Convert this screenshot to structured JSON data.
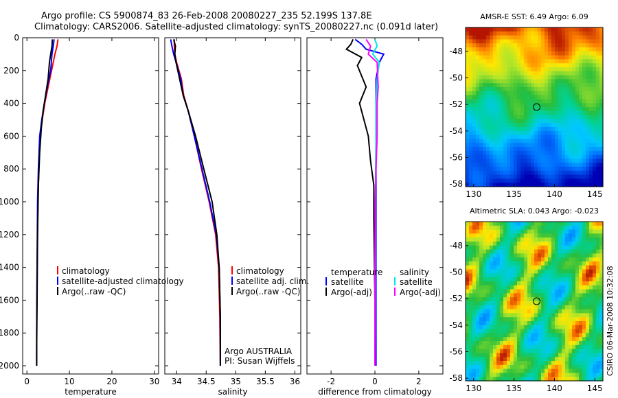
{
  "header": {
    "title_line1": "Argo profile: CS 5900874_83 26-Feb-2008 20080227_235 52.199S 137.8E",
    "title_line2": "Climatology: CARS2006. Satellite-adjusted climatology: synTS_20080227.nc (0.091d later)"
  },
  "side_credit": "CSIRO 06-Mar-2008 10:32:08",
  "colors": {
    "clim": "#ff0000",
    "sat": "#0000ff",
    "argo": "#000000",
    "salsat": "#00e5e5",
    "salargo": "#ff00ff"
  },
  "chart_data": [
    {
      "id": "temperature",
      "type": "line",
      "xlabel": "temperature",
      "ylabel": "",
      "xlim": [
        -1,
        31
      ],
      "ylim": [
        2050,
        0
      ],
      "xticks": [
        0,
        10,
        20,
        30
      ],
      "yticks": [
        0,
        200,
        400,
        600,
        800,
        1000,
        1200,
        1400,
        1600,
        1800,
        2000
      ],
      "legend": {
        "position": "bottom-center",
        "entries": [
          "climatology",
          "satellite-adjusted climatology",
          "Argo(..raw -QC)"
        ]
      },
      "series": [
        {
          "name": "climatology",
          "color": "clim",
          "x": [
            7.3,
            7.1,
            6.6,
            5.8,
            5.0,
            4.2,
            3.6,
            3.1,
            2.8,
            2.6,
            2.4,
            2.3,
            2.3
          ],
          "y": [
            10,
            50,
            100,
            200,
            300,
            400,
            500,
            600,
            800,
            1000,
            1400,
            1800,
            2000
          ]
        },
        {
          "name": "satellite-adjusted climatology",
          "color": "sat",
          "x": [
            6.4,
            6.2,
            5.9,
            5.6,
            4.8,
            4.1,
            3.5,
            3.0,
            2.7,
            2.5,
            2.4,
            2.3,
            2.3
          ],
          "y": [
            10,
            50,
            100,
            200,
            300,
            400,
            500,
            600,
            800,
            1000,
            1400,
            1800,
            2000
          ]
        },
        {
          "name": "Argo(..raw -QC)",
          "color": "argo",
          "x": [
            6.0,
            5.9,
            5.6,
            5.3,
            5.0,
            4.4,
            3.8,
            3.4,
            3.0,
            2.7,
            2.5,
            2.4,
            2.3,
            2.3
          ],
          "y": [
            10,
            50,
            100,
            150,
            250,
            350,
            450,
            550,
            700,
            900,
            1200,
            1600,
            1900,
            2000
          ]
        }
      ]
    },
    {
      "id": "salinity",
      "type": "line",
      "xlabel": "salinity",
      "ylabel": "",
      "xlim": [
        33.8,
        36.1
      ],
      "ylim": [
        2050,
        0
      ],
      "xticks": [
        34,
        34.5,
        35,
        35.5,
        36
      ],
      "yticks": [
        0,
        200,
        400,
        600,
        800,
        1000,
        1200,
        1400,
        1600,
        1800,
        2000
      ],
      "legend": {
        "position": "bottom-center",
        "entries": [
          "climatology",
          "satellite adj. clim.",
          "Argo(..raw -QC)"
        ]
      },
      "annotation": [
        "Argo AUSTRALIA",
        "PI: Susan Wijffels"
      ],
      "series": [
        {
          "name": "climatology",
          "color": "clim",
          "x": [
            33.96,
            33.96,
            33.97,
            34.0,
            34.08,
            34.12,
            34.2,
            34.3,
            34.42,
            34.55,
            34.66,
            34.71,
            34.73,
            34.74
          ],
          "y": [
            10,
            50,
            100,
            150,
            250,
            350,
            450,
            600,
            800,
            1000,
            1200,
            1400,
            1700,
            2000
          ]
        },
        {
          "name": "satellite adj. clim.",
          "color": "sat",
          "x": [
            33.9,
            33.92,
            33.95,
            33.99,
            34.07,
            34.11,
            34.2,
            34.3,
            34.43,
            34.56,
            34.67,
            34.72,
            34.74,
            34.74
          ],
          "y": [
            10,
            50,
            100,
            150,
            250,
            350,
            450,
            600,
            800,
            1000,
            1200,
            1400,
            1700,
            2000
          ]
        },
        {
          "name": "Argo(..raw -QC)",
          "color": "argo",
          "x": [
            33.95,
            33.98,
            33.97,
            33.99,
            34.05,
            34.11,
            34.2,
            34.32,
            34.46,
            34.6,
            34.68,
            34.72,
            34.74,
            34.74
          ],
          "y": [
            10,
            50,
            100,
            150,
            250,
            350,
            450,
            600,
            800,
            1000,
            1200,
            1400,
            1700,
            2000
          ]
        }
      ]
    },
    {
      "id": "difference",
      "type": "line",
      "xlabel": "difference from climatology",
      "ylabel": "",
      "xlim": [
        -3.1,
        3.1
      ],
      "ylim": [
        2050,
        0
      ],
      "xticks": [
        -2,
        0,
        2
      ],
      "yticks": [
        0,
        200,
        400,
        600,
        800,
        1000,
        1200,
        1400,
        1600,
        1800,
        2000
      ],
      "legend": {
        "position": "bottom",
        "groups": [
          {
            "title": "temperature",
            "entries": [
              "satellite",
              "Argo(-adj)"
            ]
          },
          {
            "title": "salinity",
            "entries": [
              "satellite",
              "Argo(-adj)"
            ]
          }
        ]
      },
      "series": [
        {
          "name": "temperature satellite",
          "color": "sat",
          "x": [
            -0.9,
            -0.6,
            -0.4,
            0.4,
            0.2,
            0.05,
            0.05,
            0.05,
            0.05,
            0.05,
            0.05,
            0.05,
            0.05
          ],
          "y": [
            10,
            40,
            70,
            100,
            150,
            250,
            400,
            600,
            800,
            1000,
            1400,
            1800,
            2000
          ]
        },
        {
          "name": "temperature Argo(-adj)",
          "color": "argo",
          "x": [
            -1.0,
            -1.1,
            -1.3,
            -0.6,
            -0.8,
            -0.4,
            -0.7,
            -0.3,
            -0.2,
            -0.05,
            -0.05,
            0.0,
            0.0
          ],
          "y": [
            10,
            40,
            70,
            120,
            170,
            300,
            400,
            600,
            750,
            900,
            1100,
            1600,
            2000
          ]
        },
        {
          "name": "salinity satellite",
          "color": "salsat",
          "x": [
            0.0,
            0.1,
            -0.1,
            0.2,
            0.1,
            0.05,
            0.05,
            0.03,
            0.02,
            0.02,
            0.01,
            0.0
          ],
          "y": [
            10,
            50,
            100,
            150,
            250,
            400,
            600,
            800,
            1000,
            1400,
            1800,
            2000
          ]
        },
        {
          "name": "salinity Argo(-adj)",
          "color": "salargo",
          "x": [
            -0.4,
            -0.2,
            -0.3,
            0.1,
            0.15,
            0.1,
            0.1,
            0.05,
            0.02,
            0.0,
            0.0
          ],
          "y": [
            10,
            50,
            100,
            150,
            300,
            400,
            600,
            800,
            1000,
            1400,
            2000
          ]
        }
      ]
    },
    {
      "id": "sst_map",
      "type": "heatmap",
      "title": "AMSR-E SST: 6.49 Argo: 6.09",
      "xlim": [
        129,
        146
      ],
      "ylim": [
        -58.2,
        -46.2
      ],
      "xticks": [
        130,
        135,
        140,
        145
      ],
      "yticks": [
        -48,
        -50,
        -52,
        -54,
        -56,
        -58
      ],
      "marker": {
        "lon": 137.8,
        "lat": -52.2
      }
    },
    {
      "id": "sla_map",
      "type": "heatmap",
      "title": "Altimetric SLA: 0.043 Argo: -0.023",
      "xlim": [
        129,
        146
      ],
      "ylim": [
        -58.2,
        -46.2
      ],
      "xticks": [
        130,
        135,
        140,
        145
      ],
      "yticks": [
        -48,
        -50,
        -52,
        -54,
        -56,
        -58
      ],
      "marker": {
        "lon": 137.8,
        "lat": -52.2
      }
    }
  ]
}
